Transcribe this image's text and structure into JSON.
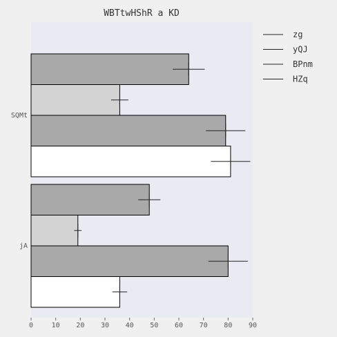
{
  "chart_data": {
    "type": "bar",
    "orientation": "horizontal",
    "title": "WBTtwHShR a KD",
    "xlabel": "",
    "ylabel": "",
    "categories": [
      "SQMt",
      "jA"
    ],
    "series": [
      {
        "name": "zg",
        "values": [
          64,
          48
        ],
        "errors": [
          6.5,
          4.5
        ],
        "color": "#a9a9a9"
      },
      {
        "name": "yQJ",
        "values": [
          36,
          19
        ],
        "errors": [
          3.5,
          1.5
        ],
        "color": "#d3d3d3"
      },
      {
        "name": "BPnm",
        "values": [
          79,
          80
        ],
        "errors": [
          8,
          8
        ],
        "color": "#a9a9a9"
      },
      {
        "name": "HZq",
        "values": [
          81,
          36
        ],
        "errors": [
          8,
          3
        ],
        "color": "#ffffff"
      }
    ],
    "xlim": [
      0,
      90
    ],
    "xticks": [
      0,
      10,
      20,
      30,
      40,
      50,
      60,
      70,
      80,
      90
    ],
    "grid": false,
    "legend_position": "top-right",
    "plot_background": "#eaeaf2",
    "bar_edge_color": "#000000"
  }
}
